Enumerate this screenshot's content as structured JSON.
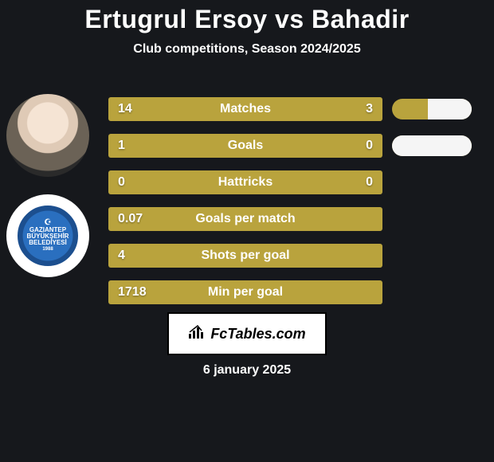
{
  "title": "Ertugrul Ersoy vs Bahadir",
  "subtitle": "Club competitions, Season 2024/2025",
  "colors": {
    "background": "#16181c",
    "bar_olive": "#b9a33d",
    "bar_white": "#f5f5f5",
    "text": "#ffffff",
    "brand_border": "#000000",
    "brand_bg": "#ffffff"
  },
  "player_avatar_alt": "Player headshot",
  "club_badge": {
    "top_line": "GAZIANTEP",
    "mid_line": "BÜYÜKŞEHİR",
    "bot_line": "BELEDİYESİ",
    "year": "1988"
  },
  "rows": [
    {
      "label": "Matches",
      "left": "14",
      "right": "3",
      "right_fill_pct": 0,
      "pill": {
        "show": true,
        "white_pct": 55
      }
    },
    {
      "label": "Goals",
      "left": "1",
      "right": "0",
      "right_fill_pct": 0,
      "pill": {
        "show": true,
        "white_pct": 100
      }
    },
    {
      "label": "Hattricks",
      "left": "0",
      "right": "0",
      "right_fill_pct": 0,
      "pill": {
        "show": false
      }
    },
    {
      "label": "Goals per match",
      "left": "0.07",
      "right": "",
      "right_fill_pct": 0,
      "pill": {
        "show": false
      }
    },
    {
      "label": "Shots per goal",
      "left": "4",
      "right": "",
      "right_fill_pct": 0,
      "pill": {
        "show": false
      }
    },
    {
      "label": "Min per goal",
      "left": "1718",
      "right": "",
      "right_fill_pct": 0,
      "pill": {
        "show": false
      }
    }
  ],
  "brand_text": "FcTables.com",
  "date_text": "6 january 2025"
}
